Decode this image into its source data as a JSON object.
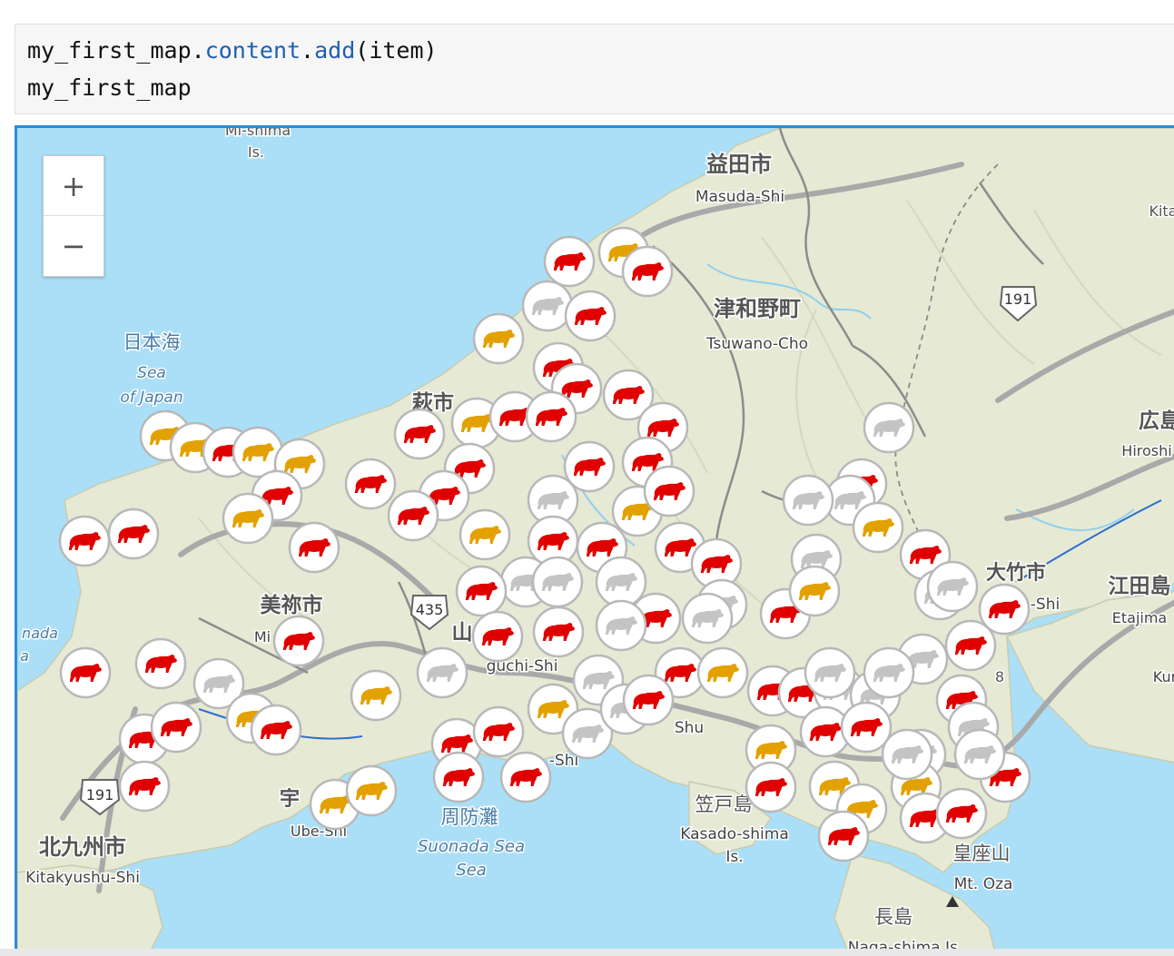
{
  "code": {
    "line1": {
      "obj": "my_first_map",
      "attr1": "content",
      "attr2": "add",
      "arg": "item"
    },
    "line2": "my_first_map"
  },
  "map": {
    "zoom_in_label": "+",
    "zoom_out_label": "−",
    "labels": [
      "Mi-shima",
      "Is.",
      "益田市",
      "Masuda-Shi",
      "Kita",
      "191",
      "津和野町",
      "Tsuwano-Cho",
      "日本海",
      "Sea",
      "of Japan",
      "萩市",
      "広島",
      "Hiroshi",
      "191",
      "大竹市",
      "-Shi",
      "江田島",
      "Etajima",
      "Kur",
      "美祢市",
      "Mi",
      "435",
      "山",
      "guchi-Shi",
      "nada",
      "a",
      "8",
      "Shu",
      "-Shi",
      "191",
      "宇",
      "Ube-Shi",
      "周防灘",
      "Suonada Sea",
      "Sea",
      "笠戸島",
      "Kasado-shima",
      "Is.",
      "皇座山",
      "Mt. Oza",
      "北九州市",
      "Kitakyushu-Shi",
      "長島",
      "Naga-shima Is."
    ]
  },
  "colors": {
    "water": "#aadff7",
    "land": "#e6e9d4",
    "road": "#a9a9a9",
    "marker_red": "#e00000",
    "marker_orange": "#e3a100",
    "marker_gray": "#c4c4c4"
  },
  "icons": {
    "marker": "bear-icon"
  }
}
